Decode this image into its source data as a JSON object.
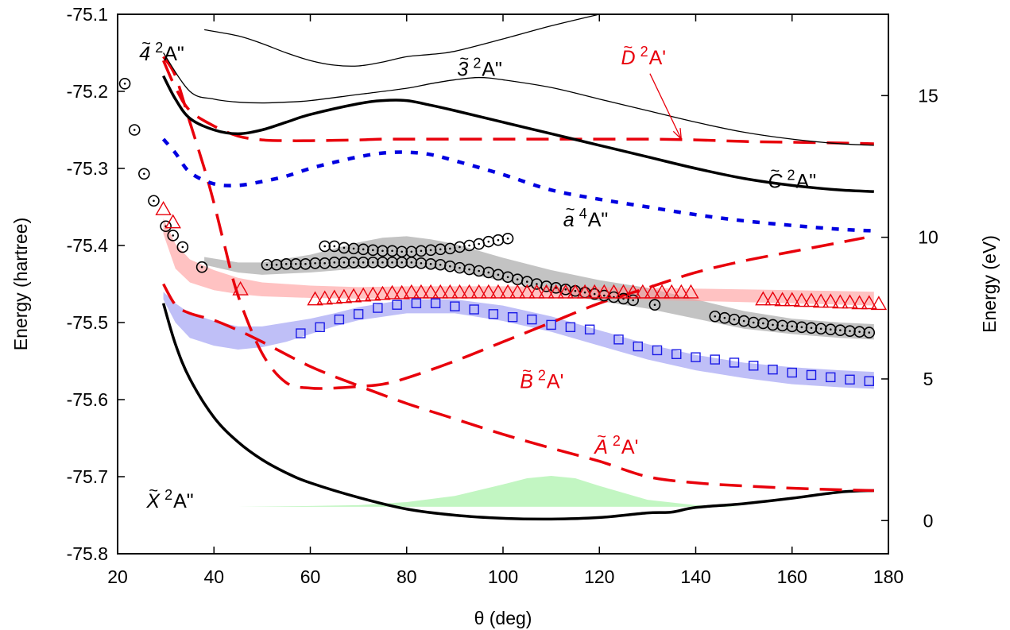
{
  "chart_data": {
    "type": "line",
    "xlabel": "θ (deg)",
    "ylabel": "Energy (hartree)",
    "y2label": "Energy (eV)",
    "xlim": [
      20,
      180
    ],
    "ylim": [
      -75.8,
      -75.1
    ],
    "y2lim": [
      -1.17,
      17.87
    ],
    "x_ticks": [
      20,
      40,
      60,
      80,
      100,
      120,
      140,
      160,
      180
    ],
    "y_ticks": [
      -75.8,
      -75.7,
      -75.6,
      -75.5,
      -75.4,
      -75.3,
      -75.2,
      -75.1
    ],
    "y2_ticks": [
      0,
      5,
      10,
      15
    ],
    "grid": false,
    "legend": "none",
    "state_labels": [
      {
        "id": "s4",
        "sym": "4",
        "sup": "2",
        "term": "A\"",
        "x": 24.5,
        "y": -75.16,
        "color": "#000000"
      },
      {
        "id": "s3",
        "sym": "3",
        "sup": "2",
        "term": "A\"",
        "x": 90.5,
        "y": -75.18,
        "color": "#000000"
      },
      {
        "id": "D",
        "sym": "D",
        "sup": "2",
        "term": "A'",
        "x": 124.5,
        "y": -75.165,
        "color": "#e8000b"
      },
      {
        "id": "C",
        "sym": "C",
        "sup": "2",
        "term": "A\"",
        "x": 155,
        "y": -75.325,
        "color": "#000000"
      },
      {
        "id": "a",
        "sym": "a",
        "sup": "4",
        "term": "A\"",
        "x": 112.5,
        "y": -75.375,
        "color": "#000000"
      },
      {
        "id": "B",
        "sym": "B",
        "sup": "2",
        "term": "A'",
        "x": 103.5,
        "y": -75.585,
        "color": "#e8000b"
      },
      {
        "id": "A",
        "sym": "A",
        "sup": "2",
        "term": "A'",
        "x": 119,
        "y": -75.67,
        "color": "#e8000b"
      },
      {
        "id": "X",
        "sym": "X",
        "sup": "2",
        "term": "A\"",
        "x": 26,
        "y": -75.74,
        "color": "#000000"
      }
    ],
    "series": [
      {
        "id": "X",
        "style": "solid-thick",
        "color": "#000000",
        "x": [
          29.5,
          32,
          35,
          40,
          45,
          50,
          55,
          60,
          70,
          80,
          90,
          100,
          110,
          120,
          130,
          135,
          140,
          150,
          160,
          170,
          177
        ],
        "y": [
          -75.475,
          -75.528,
          -75.573,
          -75.623,
          -75.655,
          -75.678,
          -75.695,
          -75.708,
          -75.727,
          -75.742,
          -75.75,
          -75.754,
          -75.755,
          -75.753,
          -75.747,
          -75.746,
          -75.74,
          -75.735,
          -75.728,
          -75.72,
          -75.718
        ]
      },
      {
        "id": "A",
        "style": "long-dash",
        "color": "#e8000b",
        "x": [
          29.5,
          32,
          35,
          40,
          45,
          50,
          60,
          70,
          80,
          90,
          100,
          110,
          120,
          130,
          140,
          150,
          160,
          170,
          177
        ],
        "y": [
          -75.45,
          -75.477,
          -75.488,
          -75.497,
          -75.51,
          -75.525,
          -75.557,
          -75.582,
          -75.605,
          -75.625,
          -75.645,
          -75.663,
          -75.68,
          -75.7,
          -75.708,
          -75.712,
          -75.715,
          -75.717,
          -75.718
        ]
      },
      {
        "id": "B",
        "style": "long-dash",
        "color": "#e8000b",
        "x": [
          29.5,
          32,
          35,
          38,
          40,
          42,
          45,
          50,
          55,
          60,
          65,
          70,
          75,
          80,
          90,
          100,
          110,
          120,
          130,
          140,
          150,
          160,
          170,
          175
        ],
        "y": [
          -75.155,
          -75.18,
          -75.24,
          -75.3,
          -75.345,
          -75.395,
          -75.465,
          -75.54,
          -75.578,
          -75.585,
          -75.585,
          -75.583,
          -75.58,
          -75.572,
          -75.55,
          -75.525,
          -75.5,
          -75.475,
          -75.455,
          -75.435,
          -75.42,
          -75.408,
          -75.396,
          -75.39
        ]
      },
      {
        "id": "D",
        "style": "long-dash",
        "color": "#e8000b",
        "x": [
          29.5,
          32,
          35,
          40,
          45,
          50,
          55,
          60,
          70,
          75,
          80,
          90,
          100,
          110,
          120,
          130,
          140,
          150,
          160,
          170,
          177
        ],
        "y": [
          -75.16,
          -75.195,
          -75.225,
          -75.245,
          -75.258,
          -75.263,
          -75.264,
          -75.264,
          -75.263,
          -75.262,
          -75.262,
          -75.262,
          -75.262,
          -75.262,
          -75.262,
          -75.262,
          -75.263,
          -75.265,
          -75.266,
          -75.267,
          -75.268
        ]
      },
      {
        "id": "C",
        "style": "solid-thick",
        "color": "#000000",
        "x": [
          29.5,
          32,
          35,
          40,
          45,
          50,
          55,
          60,
          70,
          75,
          80,
          85,
          90,
          100,
          110,
          120,
          130,
          140,
          150,
          160,
          170,
          177
        ],
        "y": [
          -75.18,
          -75.21,
          -75.235,
          -75.25,
          -75.255,
          -75.25,
          -75.24,
          -75.23,
          -75.216,
          -75.212,
          -75.212,
          -75.218,
          -75.225,
          -75.24,
          -75.255,
          -75.27,
          -75.285,
          -75.3,
          -75.313,
          -75.322,
          -75.328,
          -75.33
        ]
      },
      {
        "id": "a",
        "style": "short-dash",
        "color": "#0000e0",
        "x": [
          29.5,
          32,
          35,
          40,
          45,
          50,
          55,
          60,
          65,
          70,
          75,
          80,
          85,
          90,
          100,
          110,
          120,
          130,
          140,
          150,
          160,
          170,
          177
        ],
        "y": [
          -75.262,
          -75.28,
          -75.305,
          -75.32,
          -75.322,
          -75.317,
          -75.31,
          -75.3,
          -75.292,
          -75.285,
          -75.28,
          -75.279,
          -75.282,
          -75.29,
          -75.308,
          -75.328,
          -75.34,
          -75.35,
          -75.36,
          -75.368,
          -75.374,
          -75.379,
          -75.381
        ]
      },
      {
        "id": "s3",
        "style": "solid-thin",
        "color": "#000000",
        "x": [
          29.5,
          35,
          40,
          45,
          50,
          55,
          60,
          70,
          80,
          85,
          90,
          95,
          100,
          110,
          120,
          130,
          140,
          150,
          160,
          170,
          177
        ],
        "y": [
          -75.15,
          -75.2,
          -75.21,
          -75.214,
          -75.215,
          -75.214,
          -75.212,
          -75.204,
          -75.196,
          -75.19,
          -75.185,
          -75.182,
          -75.185,
          -75.195,
          -75.21,
          -75.225,
          -75.24,
          -75.253,
          -75.262,
          -75.268,
          -75.27
        ]
      },
      {
        "id": "s4",
        "style": "solid-thin",
        "color": "#000000",
        "x": [
          38,
          45,
          50,
          55,
          60,
          65,
          70,
          75,
          80,
          85,
          90,
          100,
          110,
          120
        ],
        "y": [
          -75.12,
          -75.128,
          -75.138,
          -75.15,
          -75.16,
          -75.166,
          -75.167,
          -75.162,
          -75.155,
          -75.152,
          -75.148,
          -75.132,
          -75.115,
          -75.1
        ]
      }
    ],
    "bands": [
      {
        "id": "gray-band",
        "color": "#a9a9a9",
        "opacity": 0.7,
        "x": [
          38,
          45,
          50,
          60,
          70,
          75,
          80,
          85,
          90,
          100,
          110,
          120,
          130,
          140,
          150,
          160,
          170,
          177
        ],
        "upper": [
          -75.415,
          -75.422,
          -75.422,
          -75.412,
          -75.396,
          -75.39,
          -75.388,
          -75.392,
          -75.398,
          -75.416,
          -75.432,
          -75.445,
          -75.455,
          -75.47,
          -75.485,
          -75.495,
          -75.5,
          -75.502
        ],
        "lower": [
          -75.425,
          -75.435,
          -75.438,
          -75.435,
          -75.43,
          -75.428,
          -75.428,
          -75.43,
          -75.433,
          -75.446,
          -75.46,
          -75.472,
          -75.482,
          -75.495,
          -75.508,
          -75.515,
          -75.52,
          -75.522
        ]
      },
      {
        "id": "pink-band",
        "color": "#ff9999",
        "opacity": 0.6,
        "x": [
          29.5,
          32,
          35,
          40,
          45,
          50,
          60,
          70,
          80,
          90,
          100,
          120,
          140,
          160,
          177
        ],
        "upper": [
          -75.365,
          -75.398,
          -75.418,
          -75.432,
          -75.442,
          -75.448,
          -75.452,
          -75.454,
          -75.453,
          -75.453,
          -75.453,
          -75.454,
          -75.456,
          -75.458,
          -75.46
        ],
        "lower": [
          -75.385,
          -75.43,
          -75.448,
          -75.458,
          -75.463,
          -75.466,
          -75.468,
          -75.469,
          -75.468,
          -75.468,
          -75.468,
          -75.469,
          -75.472,
          -75.475,
          -75.478
        ]
      },
      {
        "id": "blue-band",
        "color": "#8a8af0",
        "opacity": 0.55,
        "x": [
          29.5,
          32,
          35,
          40,
          45,
          50,
          55,
          60,
          65,
          70,
          80,
          90,
          100,
          110,
          120,
          130,
          140,
          150,
          160,
          170,
          177
        ],
        "upper": [
          -75.46,
          -75.475,
          -75.488,
          -75.498,
          -75.505,
          -75.505,
          -75.5,
          -75.495,
          -75.488,
          -75.48,
          -75.47,
          -75.47,
          -75.478,
          -75.492,
          -75.51,
          -75.528,
          -75.542,
          -75.552,
          -75.558,
          -75.562,
          -75.564
        ],
        "lower": [
          -75.47,
          -75.5,
          -75.52,
          -75.53,
          -75.535,
          -75.532,
          -75.525,
          -75.515,
          -75.505,
          -75.497,
          -75.488,
          -75.488,
          -75.498,
          -75.512,
          -75.53,
          -75.548,
          -75.562,
          -75.572,
          -75.58,
          -75.584,
          -75.586
        ]
      },
      {
        "id": "green-band",
        "color": "#90ee90",
        "opacity": 0.55,
        "x": [
          45,
          60,
          70,
          80,
          90,
          100,
          105,
          110,
          115,
          120,
          130,
          140,
          150
        ],
        "upper": [
          -75.739,
          -75.738,
          -75.737,
          -75.733,
          -75.725,
          -75.71,
          -75.702,
          -75.699,
          -75.702,
          -75.712,
          -75.73,
          -75.737,
          -75.739
        ],
        "baseline": -75.739
      }
    ],
    "markers": [
      {
        "id": "circles-left",
        "shape": "circle-dot",
        "color": "#000000",
        "points": [
          [
            21.5,
            -75.19
          ],
          [
            23.5,
            -75.25
          ],
          [
            25.5,
            -75.307
          ],
          [
            27.5,
            -75.342
          ],
          [
            30,
            -75.375
          ],
          [
            31.5,
            -75.387
          ],
          [
            33.5,
            -75.402
          ],
          [
            37.5,
            -75.428
          ]
        ]
      },
      {
        "id": "circles-upper",
        "shape": "circle-dot",
        "color": "#000000",
        "x": [
          63,
          65,
          67,
          69,
          71,
          73,
          75,
          77,
          79,
          81,
          83,
          85,
          87,
          89,
          91,
          93,
          95,
          97,
          99,
          101
        ],
        "y": [
          -75.401,
          -75.401,
          -75.403,
          -75.404,
          -75.405,
          -75.406,
          -75.407,
          -75.407,
          -75.408,
          -75.408,
          -75.407,
          -75.406,
          -75.405,
          -75.404,
          -75.402,
          -75.4,
          -75.398,
          -75.395,
          -75.393,
          -75.391
        ]
      },
      {
        "id": "circles-main",
        "shape": "circle-dot",
        "color": "#000000",
        "x": [
          51,
          53,
          55,
          57,
          59,
          61,
          63,
          65,
          67,
          69,
          71,
          73,
          75,
          77,
          79,
          81,
          83,
          85,
          87,
          89,
          91,
          93,
          95,
          97,
          99,
          101,
          103,
          105,
          107,
          109,
          111,
          113,
          115,
          117,
          119,
          121,
          123,
          125,
          127,
          131.5
        ],
        "y": [
          -75.425,
          -75.425,
          -75.424,
          -75.424,
          -75.424,
          -75.423,
          -75.423,
          -75.422,
          -75.422,
          -75.422,
          -75.422,
          -75.422,
          -75.422,
          -75.422,
          -75.422,
          -75.422,
          -75.423,
          -75.424,
          -75.425,
          -75.427,
          -75.429,
          -75.431,
          -75.433,
          -75.435,
          -75.438,
          -75.441,
          -75.444,
          -75.447,
          -75.45,
          -75.453,
          -75.455,
          -75.457,
          -75.459,
          -75.461,
          -75.463,
          -75.465,
          -75.467,
          -75.469,
          -75.471,
          -75.477
        ]
      },
      {
        "id": "circles-right",
        "shape": "circle-dot",
        "color": "#000000",
        "x": [
          144,
          146,
          148,
          150,
          152,
          154,
          156,
          158,
          160,
          162,
          164,
          166,
          168,
          170,
          172,
          174,
          176
        ],
        "y": [
          -75.492,
          -75.494,
          -75.496,
          -75.498,
          -75.5,
          -75.501,
          -75.503,
          -75.504,
          -75.505,
          -75.506,
          -75.507,
          -75.508,
          -75.509,
          -75.51,
          -75.511,
          -75.512,
          -75.513
        ]
      },
      {
        "id": "triangles",
        "shape": "triangle",
        "color": "#e8000b",
        "x": [
          29.5,
          31.5,
          45.5,
          61,
          63,
          65,
          67,
          69,
          71,
          73,
          75,
          77,
          79,
          81,
          83,
          85,
          87,
          89,
          91,
          93,
          95,
          97,
          99,
          101,
          103,
          105,
          107,
          109,
          111,
          113,
          115,
          117,
          119,
          121,
          123,
          125,
          127,
          129,
          131,
          133,
          135,
          137,
          139,
          154,
          156,
          158,
          160,
          162,
          164,
          166,
          168,
          170,
          172,
          174,
          176,
          178
        ],
        "y": [
          -75.353,
          -75.37,
          -75.457,
          -75.47,
          -75.469,
          -75.468,
          -75.467,
          -75.466,
          -75.465,
          -75.464,
          -75.463,
          -75.462,
          -75.462,
          -75.461,
          -75.461,
          -75.461,
          -75.461,
          -75.461,
          -75.461,
          -75.461,
          -75.461,
          -75.461,
          -75.461,
          -75.461,
          -75.461,
          -75.461,
          -75.461,
          -75.461,
          -75.461,
          -75.461,
          -75.461,
          -75.461,
          -75.461,
          -75.461,
          -75.461,
          -75.461,
          -75.461,
          -75.461,
          -75.461,
          -75.461,
          -75.461,
          -75.461,
          -75.461,
          -75.47,
          -75.47,
          -75.471,
          -75.471,
          -75.472,
          -75.472,
          -75.473,
          -75.473,
          -75.474,
          -75.474,
          -75.475,
          -75.475,
          -75.476
        ]
      },
      {
        "id": "squares",
        "shape": "square",
        "color": "#1a1ae6",
        "x": [
          58,
          62,
          66,
          70,
          74,
          78,
          82,
          86,
          90,
          94,
          98,
          102,
          106,
          110,
          114,
          118,
          124,
          128,
          132,
          136,
          140,
          144,
          148,
          152,
          156,
          160,
          164,
          168,
          172,
          176
        ],
        "y": [
          -75.514,
          -75.506,
          -75.496,
          -75.489,
          -75.481,
          -75.477,
          -75.475,
          -75.475,
          -75.479,
          -75.483,
          -75.489,
          -75.493,
          -75.496,
          -75.503,
          -75.506,
          -75.509,
          -75.522,
          -75.531,
          -75.536,
          -75.541,
          -75.545,
          -75.548,
          -75.552,
          -75.556,
          -75.561,
          -75.565,
          -75.568,
          -75.571,
          -75.574,
          -75.576
        ]
      }
    ],
    "annotation_arrow": {
      "from": [
        130.5,
        -75.177
      ],
      "to": [
        137,
        -75.262
      ],
      "color": "#e8000b"
    }
  }
}
